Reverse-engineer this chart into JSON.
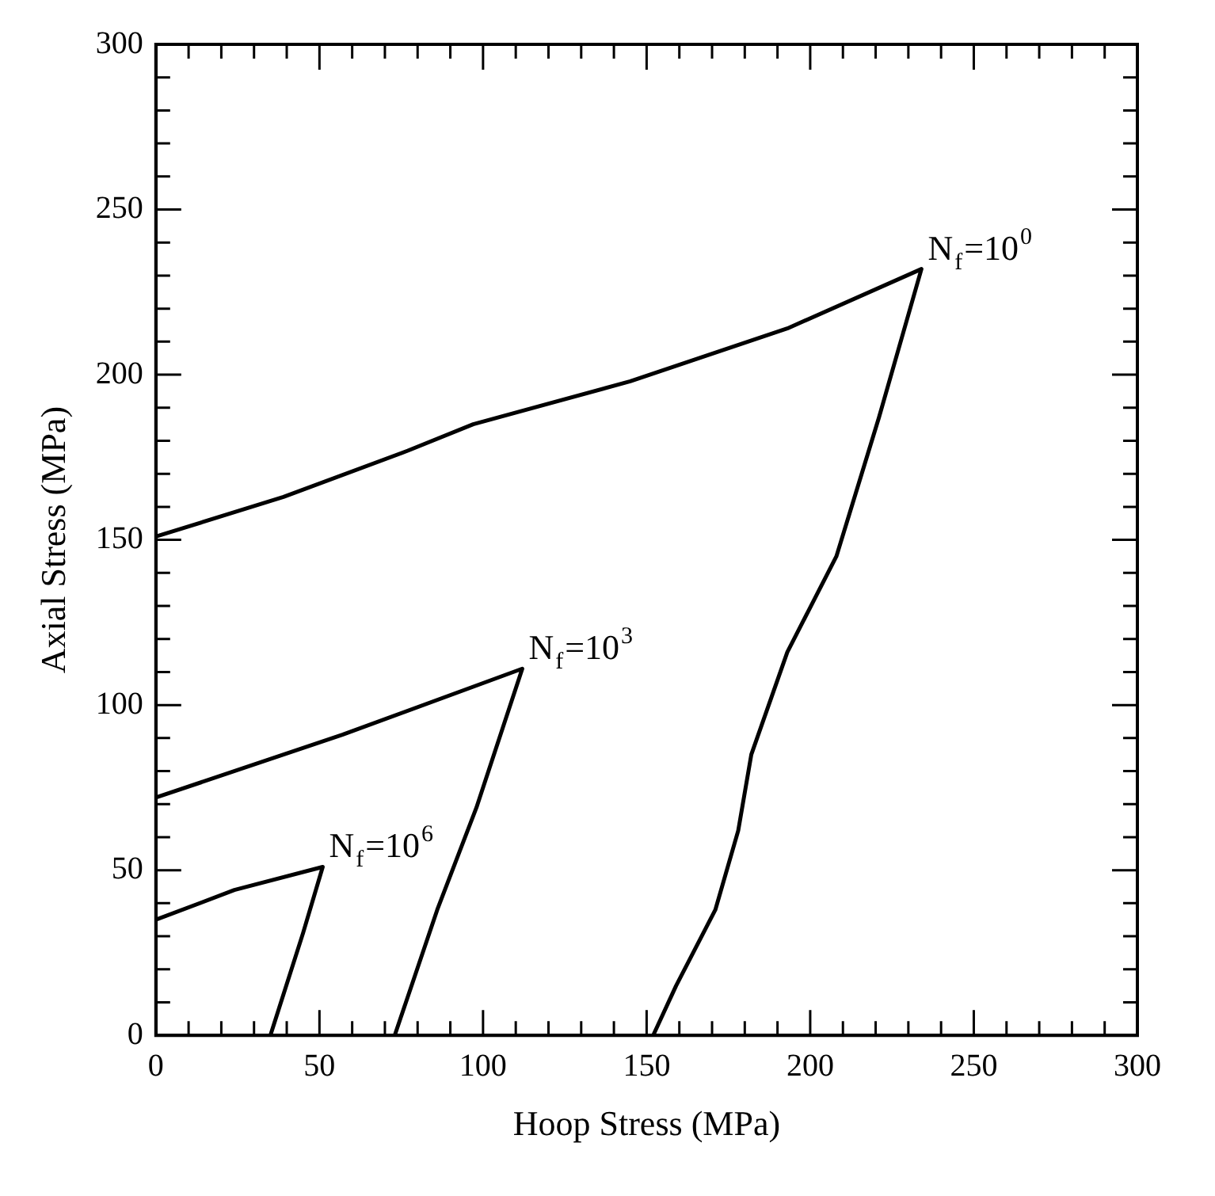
{
  "chart_data": {
    "type": "line",
    "xlabel": "Hoop Stress (MPa)",
    "ylabel": "Axial Stress (MPa)",
    "xlim": [
      0,
      300
    ],
    "ylim": [
      0,
      300
    ],
    "xticks": [
      0,
      {
        "value": 10,
        "label": null
      },
      {
        "value": 20,
        "label": null
      },
      {
        "value": 30,
        "label": null
      },
      {
        "value": 40,
        "label": null
      },
      50,
      {
        "value": 60,
        "label": null
      },
      {
        "value": 70,
        "label": null
      },
      {
        "value": 80,
        "label": null
      },
      {
        "value": 90,
        "label": null
      },
      100,
      {
        "value": 110,
        "label": null
      },
      {
        "value": 120,
        "label": null
      },
      {
        "value": 130,
        "label": null
      },
      {
        "value": 140,
        "label": null
      },
      150,
      {
        "value": 160,
        "label": null
      },
      {
        "value": 170,
        "label": null
      },
      {
        "value": 180,
        "label": null
      },
      {
        "value": 190,
        "label": null
      },
      200,
      {
        "value": 210,
        "label": null
      },
      {
        "value": 220,
        "label": null
      },
      {
        "value": 230,
        "label": null
      },
      {
        "value": 240,
        "label": null
      },
      250,
      {
        "value": 260,
        "label": null
      },
      {
        "value": 270,
        "label": null
      },
      {
        "value": 280,
        "label": null
      },
      {
        "value": 290,
        "label": null
      },
      300
    ],
    "yticks": [
      0,
      {
        "value": 10,
        "label": null
      },
      {
        "value": 20,
        "label": null
      },
      {
        "value": 30,
        "label": null
      },
      {
        "value": 40,
        "label": null
      },
      50,
      {
        "value": 60,
        "label": null
      },
      {
        "value": 70,
        "label": null
      },
      {
        "value": 80,
        "label": null
      },
      {
        "value": 90,
        "label": null
      },
      100,
      {
        "value": 110,
        "label": null
      },
      {
        "value": 120,
        "label": null
      },
      {
        "value": 130,
        "label": null
      },
      {
        "value": 140,
        "label": null
      },
      150,
      {
        "value": 160,
        "label": null
      },
      {
        "value": 170,
        "label": null
      },
      {
        "value": 180,
        "label": null
      },
      {
        "value": 190,
        "label": null
      },
      200,
      {
        "value": 210,
        "label": null
      },
      {
        "value": 220,
        "label": null
      },
      {
        "value": 230,
        "label": null
      },
      {
        "value": 240,
        "label": null
      },
      250,
      {
        "value": 260,
        "label": null
      },
      {
        "value": 270,
        "label": null
      },
      {
        "value": 280,
        "label": null
      },
      {
        "value": 290,
        "label": null
      },
      300
    ],
    "grid": false,
    "legend": false,
    "marker": "none",
    "line_style": "solid",
    "series": [
      {
        "color": "#000000",
        "x": [
          0,
          39,
          77,
          97,
          145,
          193,
          234,
          221,
          208,
          193,
          182,
          178,
          171,
          159,
          152
        ],
        "values": [
          151,
          163,
          177,
          185,
          198,
          214,
          232,
          187,
          145,
          116,
          85,
          62,
          38,
          15,
          0
        ]
      },
      {
        "color": "#000000",
        "x": [
          0,
          57,
          112,
          106,
          98,
          86,
          73
        ],
        "values": [
          72,
          91,
          111,
          93,
          69,
          38,
          0
        ]
      },
      {
        "color": "#000000",
        "x": [
          0,
          24,
          51,
          45,
          35
        ],
        "values": [
          35,
          44,
          51,
          31,
          0
        ]
      }
    ],
    "annotations": [
      {
        "text": "N$_{f}$=10$^{0}$",
        "x": 234,
        "y": 232
      },
      {
        "text": "N$_{f}$=10$^{3}$",
        "x": 112,
        "y": 111
      },
      {
        "text": "N$_{f}$=10$^{6}$",
        "x": 51,
        "y": 51
      }
    ]
  }
}
